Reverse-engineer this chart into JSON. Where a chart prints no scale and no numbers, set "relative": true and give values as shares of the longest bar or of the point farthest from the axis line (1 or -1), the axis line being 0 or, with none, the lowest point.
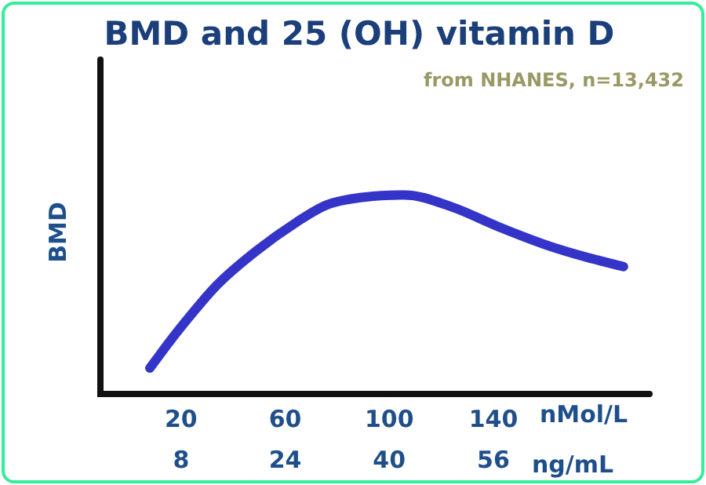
{
  "chart_data": {
    "type": "line",
    "title": "BMD and 25 (OH) vitamin D",
    "ylabel": "BMD",
    "xlabel": "nMol/L",
    "x2label": "ng/mL",
    "annotations": [
      "from NHANES, n=13,432"
    ],
    "relative": true,
    "xlim": [
      -11,
      200
    ],
    "xticks": [
      20,
      60,
      100,
      140
    ],
    "x2lim": [
      -4.4,
      80
    ],
    "x2ticks": [
      8,
      24,
      40,
      56
    ],
    "grid": false,
    "legend": false,
    "marker": "none",
    "line_style": "solid",
    "series": [
      {
        "color": "#3434c8",
        "x": [
          8,
          19,
          34,
          49,
          64,
          76,
          91,
          106,
          124,
          142,
          160,
          175,
          190
        ],
        "values": [
          0.13,
          0.32,
          0.55,
          0.72,
          0.86,
          0.95,
          0.99,
          1.0,
          0.94,
          0.84,
          0.75,
          0.69,
          0.64
        ]
      }
    ]
  }
}
